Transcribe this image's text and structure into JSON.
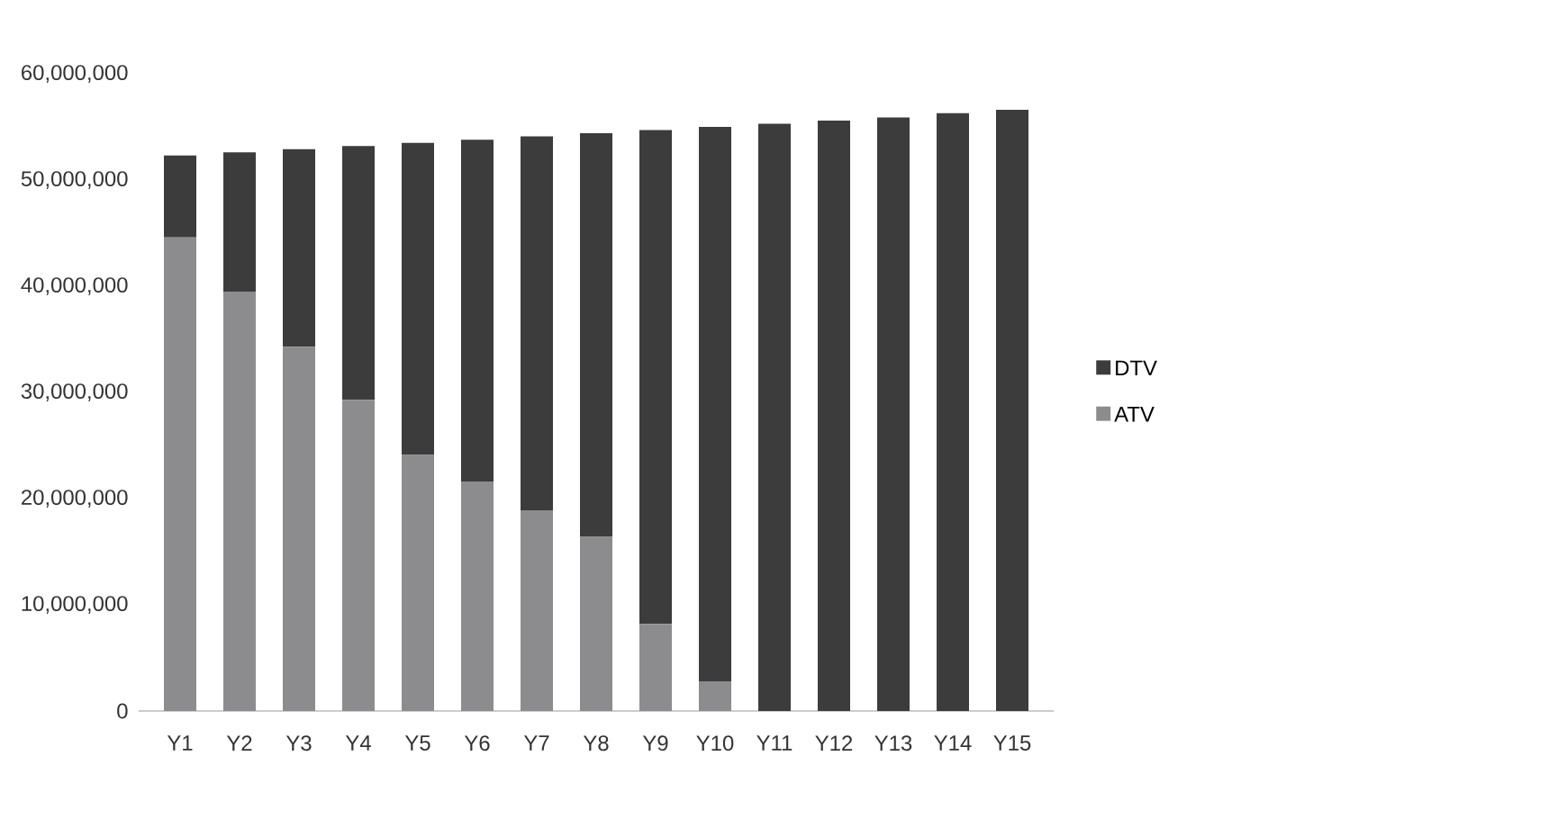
{
  "chart_data": {
    "type": "bar",
    "stacked": true,
    "categories": [
      "Y1",
      "Y2",
      "Y3",
      "Y4",
      "Y5",
      "Y6",
      "Y7",
      "Y8",
      "Y9",
      "Y10",
      "Y11",
      "Y12",
      "Y13",
      "Y14",
      "Y15"
    ],
    "series": [
      {
        "name": "ATV",
        "color": "#8c8c8e",
        "values": [
          44600000,
          39500000,
          34300000,
          29300000,
          24100000,
          21600000,
          18900000,
          16400000,
          8200000,
          2800000,
          0,
          0,
          0,
          0,
          0
        ]
      },
      {
        "name": "DTV",
        "color": "#3c3c3c",
        "values": [
          7700000,
          13100000,
          18600000,
          23900000,
          29400000,
          32200000,
          35200000,
          38000000,
          46500000,
          52200000,
          55300000,
          55600000,
          55900000,
          56300000,
          56600000
        ]
      }
    ],
    "ylim": [
      0,
      60000000
    ],
    "yticks": [
      0,
      {
        "value": 10000000,
        "label": "10,000,000"
      },
      {
        "value": 20000000,
        "label": "20,000,000"
      },
      {
        "value": 30000000,
        "label": "30,000,000"
      },
      {
        "value": 40000000,
        "label": "40,000,000"
      },
      {
        "value": 50000000,
        "label": "50,000,000"
      },
      {
        "value": 60000000,
        "label": "60,000,000"
      }
    ],
    "grid": false,
    "legend": "right"
  }
}
